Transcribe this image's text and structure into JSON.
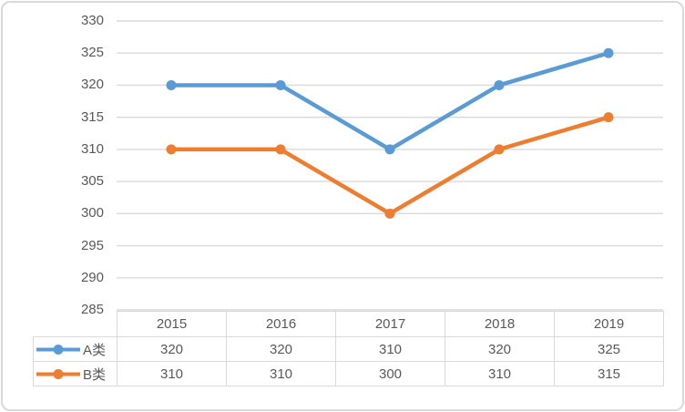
{
  "chart_data": {
    "type": "line",
    "title": "",
    "xlabel": "",
    "ylabel": "",
    "categories": [
      "2015",
      "2016",
      "2017",
      "2018",
      "2019"
    ],
    "series": [
      {
        "name": "A类",
        "color": "#5B9BD5",
        "values": [
          320,
          320,
          310,
          320,
          325
        ]
      },
      {
        "name": "B类",
        "color": "#ED7D31",
        "values": [
          310,
          310,
          300,
          310,
          315
        ]
      }
    ],
    "ylim": [
      285,
      330
    ],
    "ytick_step": 5,
    "yticks": [
      "330",
      "325",
      "320",
      "315",
      "310",
      "305",
      "300",
      "295",
      "290",
      "285"
    ],
    "grid": "horizontal",
    "legend_position": "data-table-left",
    "data_table_shown": true,
    "markers": "circle"
  },
  "colors": {
    "gridline": "#D9D9D9",
    "table_border": "#D9D9D9",
    "text": "#595959",
    "frame_border": "#D9D9D9",
    "background": "#FFFFFF"
  }
}
